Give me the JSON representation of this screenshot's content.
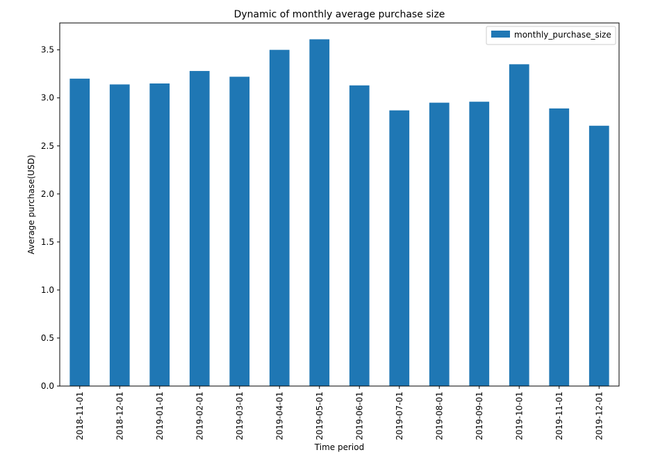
{
  "chart_data": {
    "type": "bar",
    "title": "Dynamic of monthly average purchase size",
    "xlabel": "Time period",
    "ylabel": "Average purchase(USD)",
    "categories": [
      "2018-11-01",
      "2018-12-01",
      "2019-01-01",
      "2019-02-01",
      "2019-03-01",
      "2019-04-01",
      "2019-05-01",
      "2019-06-01",
      "2019-07-01",
      "2019-08-01",
      "2019-09-01",
      "2019-10-01",
      "2019-11-01",
      "2019-12-01"
    ],
    "series": [
      {
        "name": "monthly_purchase_size",
        "values": [
          3.2,
          3.14,
          3.15,
          3.28,
          3.22,
          3.5,
          3.61,
          3.13,
          2.87,
          2.95,
          2.96,
          3.35,
          2.89,
          2.71
        ]
      }
    ],
    "ylim": [
      0,
      3.78
    ],
    "yticks": [
      0.0,
      0.5,
      1.0,
      1.5,
      2.0,
      2.5,
      3.0,
      3.5
    ],
    "ytick_labels": [
      "0.0",
      "0.5",
      "1.0",
      "1.5",
      "2.0",
      "2.5",
      "3.0",
      "3.5"
    ],
    "grid": false,
    "legend_position": "top-right",
    "colors": {
      "bar": "#1f77b4",
      "axis": "#000000",
      "background": "#ffffff"
    }
  }
}
